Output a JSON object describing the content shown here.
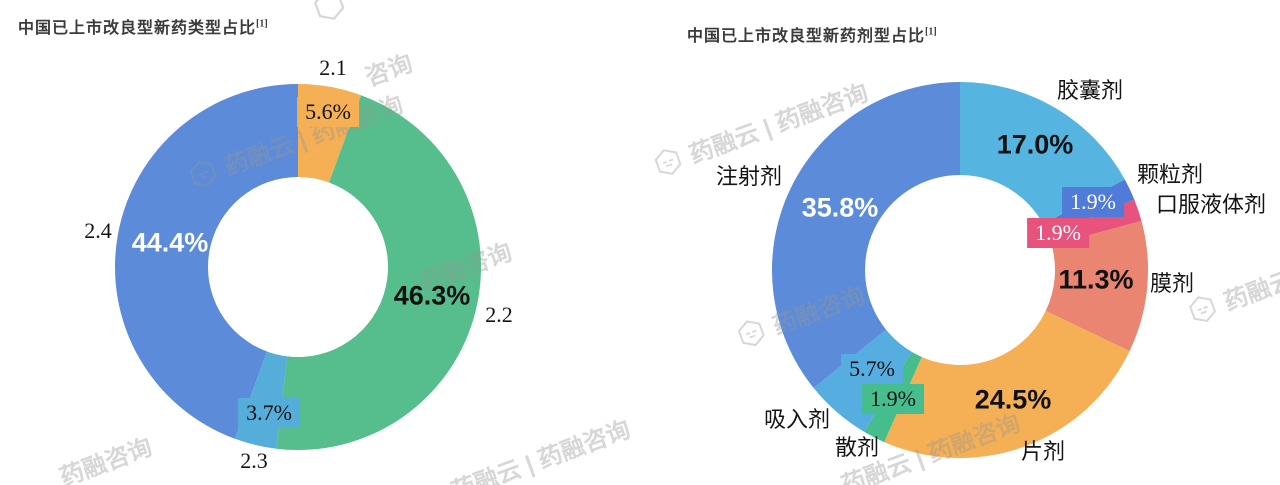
{
  "watermarks": [
    {
      "text": "药融云 | 药融咨询",
      "logo": true
    },
    {
      "text": "咨询",
      "logo": false
    },
    {
      "text": "药融咨询",
      "logo": false
    },
    {
      "text": "药融咨询",
      "logo": false
    },
    {
      "text": "药融云 | 药融咨询",
      "logo": false
    },
    {
      "text": "药融云 | 药融咨询",
      "logo": true
    },
    {
      "text": "药融咨询",
      "logo": true
    },
    {
      "text": "药融云",
      "logo": true
    },
    {
      "text": "药融云 | 药融咨询",
      "logo": false
    },
    {
      "text": "",
      "logo": true
    }
  ],
  "charts": [
    {
      "footnote_ref": "[1]",
      "chart_data": {
        "type": "pie",
        "subtype": "donut",
        "title": "中国已上市改良型新药类型占比",
        "unit": "%",
        "start_angle": "top, clockwise",
        "legend": "none (callout labels)",
        "categories": [
          "2.1",
          "2.2",
          "2.3",
          "2.4"
        ],
        "values": [
          5.6,
          46.3,
          3.7,
          44.4
        ],
        "value_labels": [
          "5.6%",
          "46.3%",
          "3.7%",
          "44.4%"
        ],
        "colors": [
          "#F5B055",
          "#55BE8C",
          "#55ADDA",
          "#5B8BD9"
        ]
      }
    },
    {
      "footnote_ref": "[1]",
      "chart_data": {
        "type": "pie",
        "subtype": "donut",
        "title": "中国已上市改良型新药剂型占比",
        "unit": "%",
        "start_angle": "top, clockwise",
        "legend": "none (callout labels)",
        "categories": [
          "胶囊剂",
          "颗粒剂",
          "口服液体剂",
          "膜剂",
          "片剂",
          "散剂",
          "吸入剂",
          "注射剂"
        ],
        "values": [
          17.0,
          1.9,
          1.9,
          11.3,
          24.5,
          1.9,
          5.7,
          35.8
        ],
        "value_labels": [
          "17.0%",
          "1.9%",
          "1.9%",
          "11.3%",
          "24.5%",
          "1.9%",
          "5.7%",
          "35.8%"
        ],
        "colors": [
          "#55B5E0",
          "#507BD8",
          "#E8537E",
          "#E98570",
          "#F5B055",
          "#45BD8C",
          "#55ADE0",
          "#5B8BD9"
        ]
      }
    }
  ]
}
